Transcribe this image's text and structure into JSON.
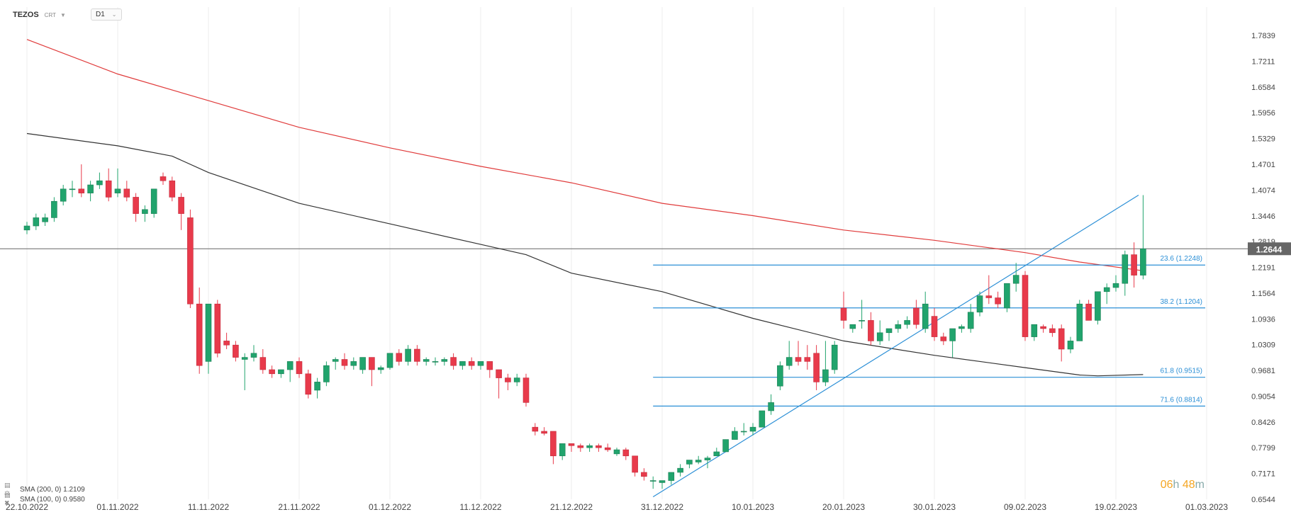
{
  "header": {
    "symbol": "TEZOS",
    "symbol_sub": "CRT",
    "timeframe": "D1"
  },
  "legend": [
    {
      "label": "SMA (200, 0)  1.2109",
      "color": "#e03b3b"
    },
    {
      "label": "SMA (100, 0)  0.9580",
      "color": "#333333"
    }
  ],
  "countdown": {
    "hours": "06",
    "h": "h",
    "minutes": "48",
    "m": "m"
  },
  "colors": {
    "up": "#21a46d",
    "down": "#e83a4b",
    "fib": "#2b8fd6",
    "sma200": "#e03b3b",
    "sma100": "#333333",
    "price": "#666666"
  },
  "chart_data": {
    "type": "candlestick",
    "y_ticks": [
      "1.7839",
      "1.7211",
      "1.6584",
      "1.5956",
      "1.5329",
      "1.4701",
      "1.4074",
      "1.3446",
      "1.2819",
      "1.2191",
      "1.1564",
      "1.0936",
      "1.0309",
      "0.9681",
      "0.9054",
      "0.8426",
      "0.7799",
      "0.7171",
      "0.6544"
    ],
    "ylim": [
      0.6544,
      1.7839
    ],
    "x_ticks": [
      {
        "label": "22.10.2022",
        "day": 0
      },
      {
        "label": "01.11.2022",
        "day": 10
      },
      {
        "label": "11.11.2022",
        "day": 20
      },
      {
        "label": "21.11.2022",
        "day": 30
      },
      {
        "label": "01.12.2022",
        "day": 40
      },
      {
        "label": "11.12.2022",
        "day": 50
      },
      {
        "label": "21.12.2022",
        "day": 60
      },
      {
        "label": "31.12.2022",
        "day": 70
      },
      {
        "label": "10.01.2023",
        "day": 80
      },
      {
        "label": "20.01.2023",
        "day": 90
      },
      {
        "label": "30.01.2023",
        "day": 100
      },
      {
        "label": "09.02.2023",
        "day": 110
      },
      {
        "label": "19.02.2023",
        "day": 120
      },
      {
        "label": "01.03.2023",
        "day": 130
      }
    ],
    "current_price": {
      "label": "1.2644",
      "value": 1.2644
    },
    "fib_levels": [
      {
        "label": "23.6 (1.2248)",
        "value": 1.2248
      },
      {
        "label": "38.2 (1.1204)",
        "value": 1.1204
      },
      {
        "label": "61.8 (0.9515)",
        "value": 0.9515
      },
      {
        "label": "71.6 (0.8814)",
        "value": 0.8814
      }
    ],
    "fib_start_day": 69,
    "trendline": {
      "from": {
        "day": 69,
        "value": 0.6604
      },
      "to": {
        "day": 122.5,
        "value": 1.395
      }
    },
    "candles": [
      [
        0.0,
        1.31,
        1.33,
        1.3,
        1.32
      ],
      [
        1.0,
        1.32,
        1.35,
        1.31,
        1.34
      ],
      [
        2.0,
        1.33,
        1.35,
        1.32,
        1.34
      ],
      [
        3.0,
        1.34,
        1.39,
        1.33,
        1.38
      ],
      [
        4.0,
        1.38,
        1.42,
        1.37,
        1.41
      ],
      [
        5.0,
        1.41,
        1.43,
        1.39,
        1.41
      ],
      [
        6.0,
        1.41,
        1.47,
        1.39,
        1.4
      ],
      [
        7.0,
        1.4,
        1.43,
        1.38,
        1.42
      ],
      [
        8.0,
        1.42,
        1.45,
        1.41,
        1.43
      ],
      [
        9.0,
        1.43,
        1.46,
        1.38,
        1.39
      ],
      [
        10.0,
        1.4,
        1.46,
        1.39,
        1.41
      ],
      [
        11.0,
        1.41,
        1.43,
        1.38,
        1.39
      ],
      [
        12.0,
        1.39,
        1.4,
        1.33,
        1.35
      ],
      [
        13.0,
        1.35,
        1.37,
        1.33,
        1.36
      ],
      [
        14.0,
        1.35,
        1.41,
        1.34,
        1.41
      ],
      [
        15.0,
        1.44,
        1.45,
        1.42,
        1.43
      ],
      [
        16.0,
        1.43,
        1.44,
        1.38,
        1.39
      ],
      [
        17.0,
        1.39,
        1.4,
        1.31,
        1.35
      ],
      [
        18.0,
        1.34,
        1.36,
        1.12,
        1.13
      ],
      [
        19.0,
        1.13,
        1.17,
        0.96,
        0.98
      ],
      [
        20.0,
        0.99,
        1.13,
        0.96,
        1.13
      ],
      [
        21.0,
        1.13,
        1.14,
        1.0,
        1.01
      ],
      [
        22.0,
        1.04,
        1.06,
        1.02,
        1.03
      ],
      [
        23.0,
        1.03,
        1.04,
        0.99,
        1.0
      ],
      [
        24.0,
        0.995,
        1.01,
        0.92,
        1.0
      ],
      [
        25.0,
        1.0,
        1.03,
        0.99,
        1.01
      ],
      [
        26.0,
        1.0,
        1.02,
        0.96,
        0.97
      ],
      [
        27.0,
        0.97,
        0.98,
        0.95,
        0.96
      ],
      [
        28.0,
        0.96,
        0.97,
        0.95,
        0.97
      ],
      [
        29.0,
        0.97,
        0.99,
        0.94,
        0.99
      ],
      [
        30.0,
        0.99,
        1.0,
        0.95,
        0.96
      ],
      [
        31.0,
        0.96,
        0.97,
        0.9,
        0.91
      ],
      [
        32.0,
        0.92,
        0.95,
        0.9,
        0.94
      ],
      [
        33.0,
        0.94,
        0.99,
        0.93,
        0.98
      ],
      [
        34.0,
        0.99,
        1.0,
        0.97,
        0.995
      ],
      [
        35.0,
        0.995,
        1.01,
        0.97,
        0.98
      ],
      [
        36.0,
        0.98,
        1.0,
        0.97,
        0.99
      ],
      [
        37.0,
        0.97,
        1.0,
        0.96,
        1.0
      ],
      [
        38.0,
        1.0,
        1.0,
        0.93,
        0.97
      ],
      [
        39.0,
        0.97,
        0.98,
        0.96,
        0.975
      ],
      [
        40.0,
        0.975,
        1.01,
        0.97,
        1.01
      ],
      [
        41.0,
        1.01,
        1.02,
        0.98,
        0.99
      ],
      [
        42.0,
        0.99,
        1.03,
        0.98,
        1.02
      ],
      [
        43.0,
        1.02,
        1.03,
        0.98,
        0.99
      ],
      [
        44.0,
        0.99,
        1.0,
        0.98,
        0.995
      ],
      [
        45.0,
        0.99,
        1.0,
        0.98,
        0.99
      ],
      [
        46.0,
        0.99,
        1.0,
        0.98,
        0.995
      ],
      [
        47.0,
        1.0,
        1.01,
        0.97,
        0.98
      ],
      [
        48.0,
        0.98,
        0.99,
        0.97,
        0.99
      ],
      [
        49.0,
        0.99,
        1.0,
        0.97,
        0.98
      ],
      [
        50.0,
        0.98,
        0.99,
        0.97,
        0.99
      ],
      [
        51.0,
        0.99,
        0.99,
        0.95,
        0.97
      ],
      [
        52.0,
        0.97,
        0.97,
        0.9,
        0.95
      ],
      [
        53.0,
        0.95,
        0.96,
        0.92,
        0.94
      ],
      [
        54.0,
        0.94,
        0.96,
        0.93,
        0.95
      ],
      [
        55.0,
        0.95,
        0.96,
        0.88,
        0.89
      ],
      [
        56.0,
        0.83,
        0.84,
        0.81,
        0.82
      ],
      [
        57.0,
        0.82,
        0.83,
        0.81,
        0.815
      ],
      [
        58.0,
        0.82,
        0.82,
        0.74,
        0.76
      ],
      [
        59.0,
        0.76,
        0.79,
        0.75,
        0.79
      ],
      [
        60.0,
        0.79,
        0.79,
        0.77,
        0.785
      ],
      [
        61.0,
        0.785,
        0.79,
        0.77,
        0.78
      ],
      [
        62.0,
        0.78,
        0.79,
        0.77,
        0.785
      ],
      [
        63.0,
        0.785,
        0.79,
        0.77,
        0.78
      ],
      [
        64.0,
        0.78,
        0.79,
        0.77,
        0.775
      ],
      [
        65.0,
        0.765,
        0.78,
        0.76,
        0.775
      ],
      [
        66.0,
        0.775,
        0.78,
        0.75,
        0.76
      ],
      [
        67.0,
        0.76,
        0.76,
        0.71,
        0.72
      ],
      [
        68.0,
        0.72,
        0.73,
        0.7,
        0.71
      ],
      [
        69.0,
        0.7,
        0.71,
        0.68,
        0.7
      ],
      [
        70.0,
        0.695,
        0.7,
        0.68,
        0.7
      ],
      [
        71.0,
        0.7,
        0.72,
        0.69,
        0.72
      ],
      [
        72.0,
        0.72,
        0.74,
        0.71,
        0.73
      ],
      [
        73.0,
        0.74,
        0.75,
        0.73,
        0.75
      ],
      [
        74.0,
        0.745,
        0.76,
        0.74,
        0.75
      ],
      [
        75.0,
        0.75,
        0.76,
        0.73,
        0.755
      ],
      [
        76.0,
        0.76,
        0.78,
        0.76,
        0.77
      ],
      [
        77.0,
        0.77,
        0.8,
        0.77,
        0.8
      ],
      [
        78.0,
        0.8,
        0.83,
        0.8,
        0.82
      ],
      [
        79.0,
        0.82,
        0.84,
        0.81,
        0.82
      ],
      [
        80.0,
        0.82,
        0.84,
        0.81,
        0.83
      ],
      [
        81.0,
        0.83,
        0.87,
        0.83,
        0.87
      ],
      [
        82.0,
        0.87,
        0.91,
        0.86,
        0.89
      ],
      [
        83.0,
        0.93,
        0.99,
        0.92,
        0.98
      ],
      [
        84.0,
        0.98,
        1.04,
        0.97,
        1.0
      ],
      [
        85.0,
        1.0,
        1.04,
        0.98,
        0.99
      ],
      [
        86.0,
        1.0,
        1.03,
        0.97,
        0.99
      ],
      [
        87.0,
        1.01,
        1.03,
        0.92,
        0.94
      ],
      [
        88.0,
        0.94,
        1.04,
        0.93,
        0.97
      ],
      [
        89.0,
        0.97,
        1.04,
        0.96,
        1.03
      ],
      [
        90.0,
        1.12,
        1.16,
        1.07,
        1.09
      ],
      [
        91.0,
        1.07,
        1.08,
        1.06,
        1.08
      ],
      [
        92.0,
        1.09,
        1.14,
        1.07,
        1.09
      ],
      [
        93.0,
        1.09,
        1.11,
        1.03,
        1.04
      ],
      [
        94.0,
        1.04,
        1.09,
        1.03,
        1.06
      ],
      [
        95.0,
        1.06,
        1.07,
        1.04,
        1.07
      ],
      [
        96.0,
        1.07,
        1.09,
        1.06,
        1.08
      ],
      [
        97.0,
        1.08,
        1.1,
        1.07,
        1.09
      ],
      [
        98.0,
        1.12,
        1.14,
        1.07,
        1.08
      ],
      [
        99.0,
        1.07,
        1.16,
        1.06,
        1.13
      ],
      [
        100.0,
        1.1,
        1.12,
        1.04,
        1.05
      ],
      [
        101.0,
        1.05,
        1.06,
        1.03,
        1.04
      ],
      [
        102.0,
        1.04,
        1.07,
        1.0,
        1.07
      ],
      [
        103.0,
        1.07,
        1.08,
        1.06,
        1.075
      ],
      [
        104.0,
        1.07,
        1.13,
        1.06,
        1.11
      ],
      [
        105.0,
        1.11,
        1.16,
        1.1,
        1.15
      ],
      [
        106.0,
        1.15,
        1.2,
        1.13,
        1.145
      ],
      [
        107.0,
        1.145,
        1.16,
        1.12,
        1.13
      ],
      [
        108.0,
        1.12,
        1.18,
        1.11,
        1.18
      ],
      [
        109.0,
        1.18,
        1.23,
        1.16,
        1.2
      ],
      [
        110.0,
        1.2,
        1.21,
        1.04,
        1.05
      ],
      [
        111.0,
        1.05,
        1.08,
        1.04,
        1.08
      ],
      [
        112.0,
        1.075,
        1.08,
        1.06,
        1.07
      ],
      [
        113.0,
        1.07,
        1.08,
        1.05,
        1.06
      ],
      [
        114.0,
        1.07,
        1.08,
        0.99,
        1.02
      ],
      [
        115.0,
        1.02,
        1.05,
        1.01,
        1.04
      ],
      [
        116.0,
        1.04,
        1.14,
        1.04,
        1.13
      ],
      [
        117.0,
        1.13,
        1.14,
        1.09,
        1.09
      ],
      [
        118.0,
        1.09,
        1.16,
        1.08,
        1.16
      ],
      [
        119.0,
        1.16,
        1.18,
        1.13,
        1.17
      ],
      [
        120.0,
        1.17,
        1.2,
        1.16,
        1.18
      ],
      [
        121.0,
        1.18,
        1.26,
        1.15,
        1.25
      ],
      [
        122.0,
        1.25,
        1.28,
        1.17,
        1.2
      ],
      [
        123.0,
        1.2,
        1.395,
        1.19,
        1.2644
      ]
    ],
    "sma200": [
      [
        0,
        1.774
      ],
      [
        10,
        1.69
      ],
      [
        20,
        1.625
      ],
      [
        30,
        1.56
      ],
      [
        40,
        1.51
      ],
      [
        50,
        1.465
      ],
      [
        60,
        1.425
      ],
      [
        70,
        1.375
      ],
      [
        80,
        1.345
      ],
      [
        90,
        1.31
      ],
      [
        100,
        1.285
      ],
      [
        110,
        1.255
      ],
      [
        116,
        1.232
      ],
      [
        123,
        1.2109
      ]
    ],
    "sma100": [
      [
        0,
        1.545
      ],
      [
        10,
        1.515
      ],
      [
        16,
        1.49
      ],
      [
        20,
        1.45
      ],
      [
        30,
        1.375
      ],
      [
        40,
        1.325
      ],
      [
        50,
        1.275
      ],
      [
        55,
        1.25
      ],
      [
        60,
        1.205
      ],
      [
        70,
        1.16
      ],
      [
        80,
        1.095
      ],
      [
        90,
        1.04
      ],
      [
        100,
        1.005
      ],
      [
        110,
        0.975
      ],
      [
        116,
        0.957
      ],
      [
        118,
        0.955
      ],
      [
        123,
        0.958
      ]
    ],
    "sma200_start_day": -0.3,
    "sma100_start_day": -0.3
  }
}
